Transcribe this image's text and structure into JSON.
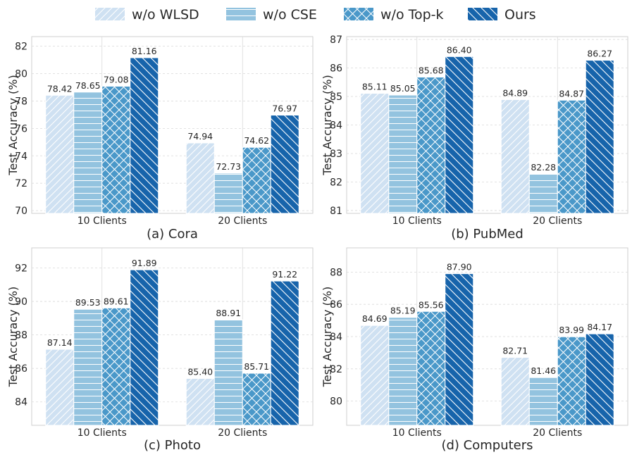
{
  "legend": [
    {
      "name": "w/o WLSD",
      "color": "#cfe1f2",
      "pattern": "diag-fwd"
    },
    {
      "name": "w/o CSE",
      "color": "#93c3df",
      "pattern": "horiz"
    },
    {
      "name": "w/o Top-k",
      "color": "#4a98c9",
      "pattern": "cross"
    },
    {
      "name": "Ours",
      "color": "#1764ab",
      "pattern": "diag-back"
    }
  ],
  "chart_data": [
    {
      "type": "bar",
      "caption": "(a) Cora",
      "ylabel": "Test Accuracy (%)",
      "categories": [
        "10 Clients",
        "20 Clients"
      ],
      "ylim": [
        69.8,
        82.7
      ],
      "yticks": [
        70,
        72,
        74,
        76,
        78,
        80,
        82
      ],
      "series": [
        {
          "name": "w/o WLSD",
          "values": [
            78.42,
            74.94
          ]
        },
        {
          "name": "w/o CSE",
          "values": [
            78.65,
            72.73
          ]
        },
        {
          "name": "w/o Top-k",
          "values": [
            79.08,
            74.62
          ]
        },
        {
          "name": "Ours",
          "values": [
            81.16,
            76.97
          ]
        }
      ]
    },
    {
      "type": "bar",
      "caption": "(b) PubMed",
      "ylabel": "Test Accuracy (%)",
      "categories": [
        "10 Clients",
        "20 Clients"
      ],
      "ylim": [
        80.9,
        87.1
      ],
      "yticks": [
        81,
        82,
        83,
        84,
        85,
        86,
        87
      ],
      "series": [
        {
          "name": "w/o WLSD",
          "values": [
            85.11,
            84.89
          ]
        },
        {
          "name": "w/o CSE",
          "values": [
            85.05,
            82.28
          ]
        },
        {
          "name": "w/o Top-k",
          "values": [
            85.68,
            84.87
          ]
        },
        {
          "name": "Ours",
          "values": [
            86.4,
            86.27
          ]
        }
      ]
    },
    {
      "type": "bar",
      "caption": "(c) Photo",
      "ylabel": "Test Accuracy (%)",
      "categories": [
        "10 Clients",
        "20 Clients"
      ],
      "ylim": [
        82.6,
        93.2
      ],
      "yticks": [
        84,
        86,
        88,
        90,
        92
      ],
      "series": [
        {
          "name": "w/o WLSD",
          "values": [
            87.14,
            85.4
          ]
        },
        {
          "name": "w/o CSE",
          "values": [
            89.53,
            88.91
          ]
        },
        {
          "name": "w/o Top-k",
          "values": [
            89.61,
            85.71
          ]
        },
        {
          "name": "Ours",
          "values": [
            91.89,
            91.22
          ]
        }
      ]
    },
    {
      "type": "bar",
      "caption": "(d) Computers",
      "ylabel": "Test Accuracy (%)",
      "categories": [
        "10 Clients",
        "20 Clients"
      ],
      "ylim": [
        78.5,
        89.5
      ],
      "yticks": [
        80,
        82,
        84,
        86,
        88
      ],
      "series": [
        {
          "name": "w/o WLSD",
          "values": [
            84.69,
            82.71
          ]
        },
        {
          "name": "w/o CSE",
          "values": [
            85.19,
            81.46
          ]
        },
        {
          "name": "w/o Top-k",
          "values": [
            85.56,
            83.99
          ]
        },
        {
          "name": "Ours",
          "values": [
            87.9,
            84.17
          ]
        }
      ]
    }
  ]
}
